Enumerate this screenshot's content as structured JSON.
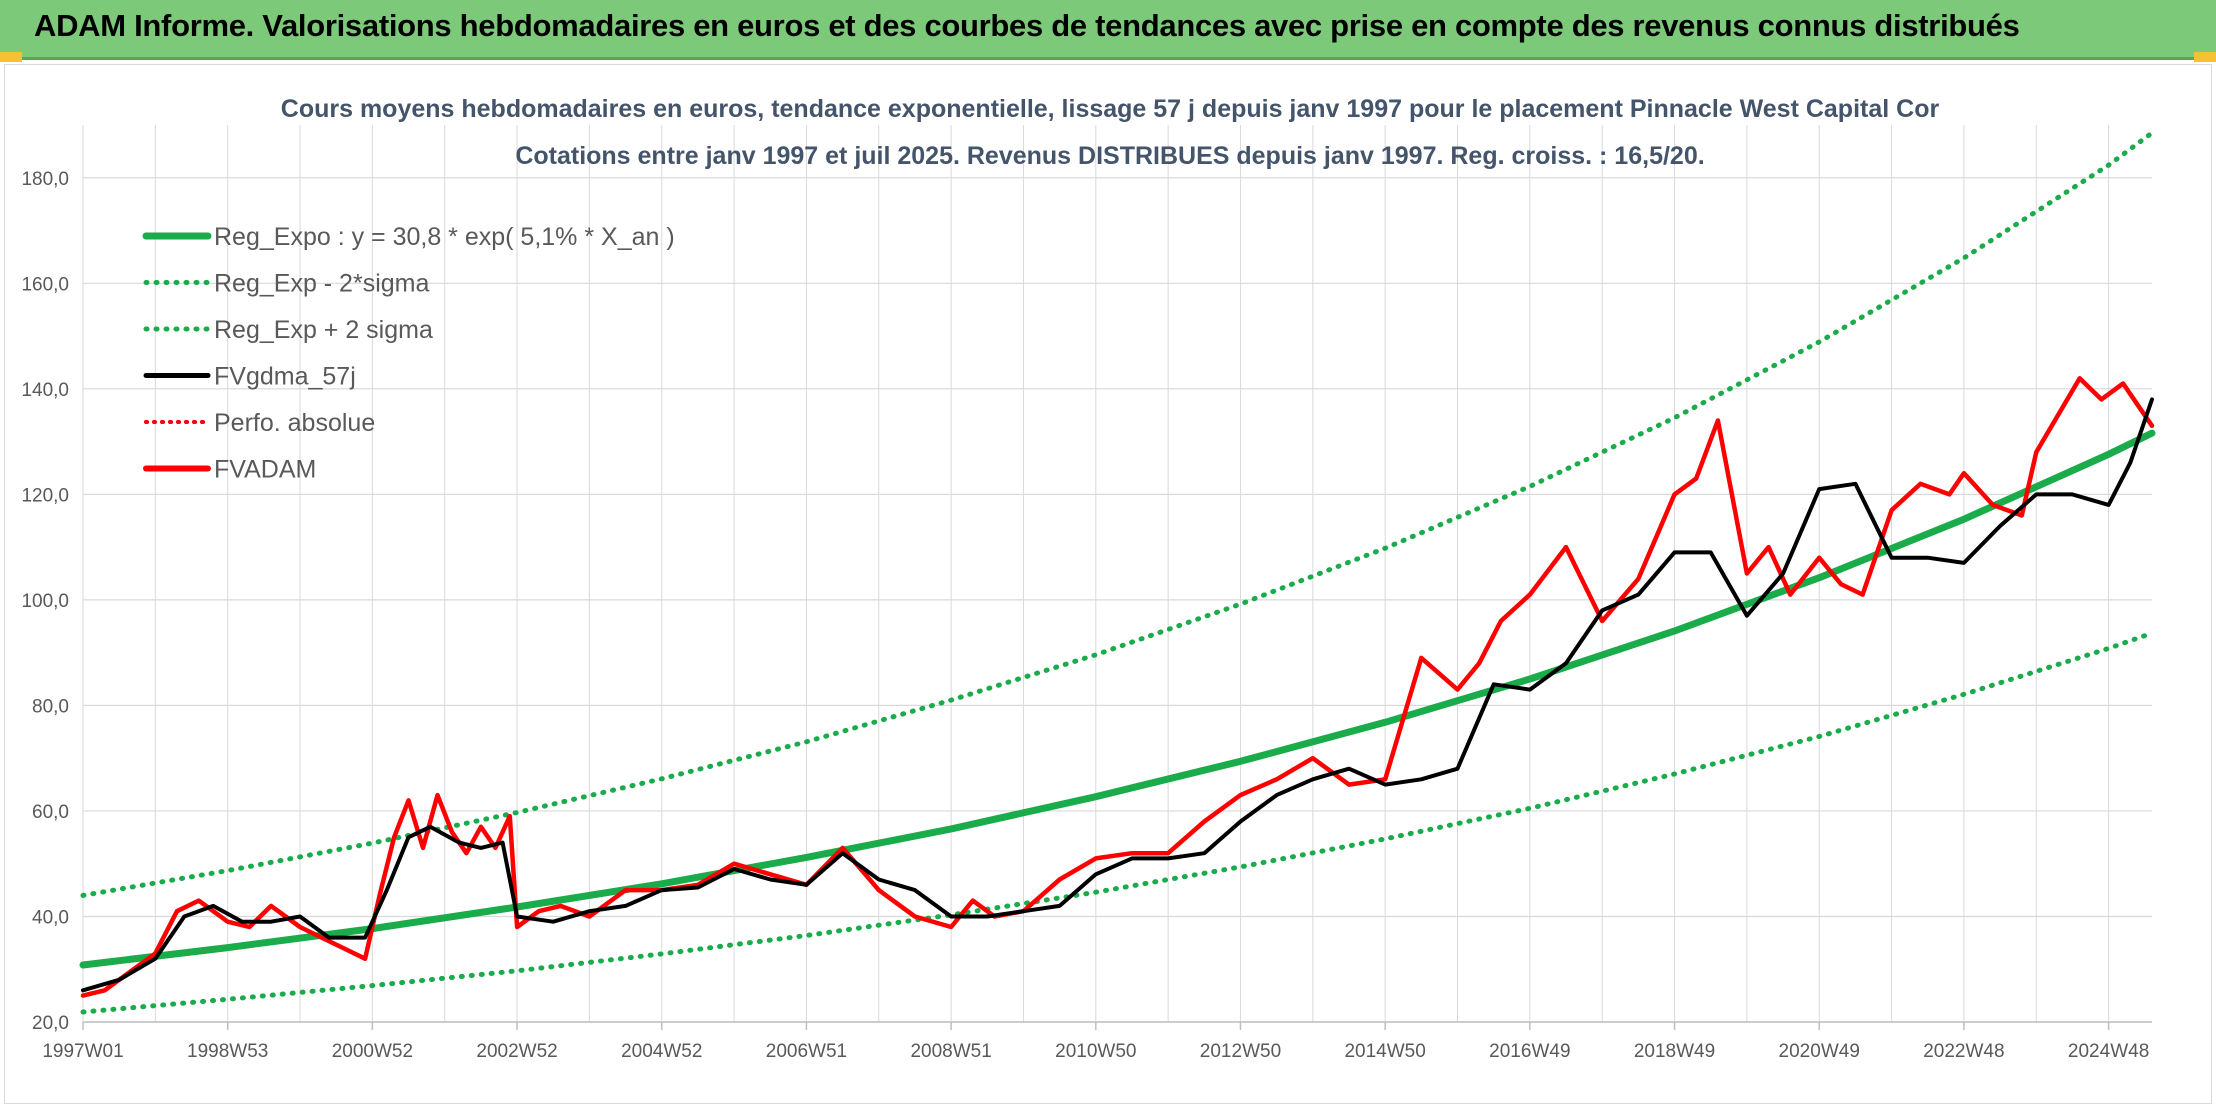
{
  "header": {
    "title": "ADAM Informe. Valorisations hebdomadaires en euros et des courbes de tendances avec prise en compte des revenus connus distribués"
  },
  "colors": {
    "banner": "#7dc97a",
    "reg_expo": "#1aab4b",
    "fvgdma": "#000000",
    "fvadam": "#ff0000",
    "perfo": "#ff0000",
    "grid": "#d9d9d9"
  },
  "chart_data": {
    "type": "line",
    "title": "Cours moyens hebdomadaires en euros, tendance exponentielle, lissage 57 j depuis janv 1997 pour le placement Pinnacle West Capital Cor",
    "subtitle": "Cotations entre janv 1997 et juil 2025. Revenus DISTRIBUES depuis janv 1997. Reg. croiss. : 16,5/20.",
    "xlabel": "",
    "ylabel": "",
    "ylim": [
      20,
      190
    ],
    "xlim": [
      1997.0,
      2025.6
    ],
    "grid": true,
    "legend_position": "top-left",
    "y_ticks": [
      "20,0",
      "40,0",
      "60,0",
      "80,0",
      "100,0",
      "120,0",
      "140,0",
      "160,0",
      "180,0"
    ],
    "x_ticks": [
      "1997W01",
      "1998W53",
      "2000W52",
      "2002W52",
      "2004W52",
      "2006W51",
      "2008W51",
      "2010W50",
      "2012W50",
      "2014W50",
      "2016W49",
      "2018W49",
      "2020W49",
      "2022W48",
      "2024W48"
    ],
    "x_tick_values": [
      1997.0,
      1999.0,
      2001.0,
      2003.0,
      2005.0,
      2007.0,
      2009.0,
      2011.0,
      2013.0,
      2015.0,
      2017.0,
      2019.0,
      2021.0,
      2023.0,
      2025.0
    ],
    "legend": [
      "Reg_Expo : y = 30,8 * exp( 5,1% *  X_an )",
      "Reg_Exp - 2*sigma",
      "Reg_Exp + 2 sigma",
      "FVgdma_57j",
      "Perfo. absolue",
      "FVADAM"
    ],
    "series": [
      {
        "name": "Reg_Expo : y = 30,8 * exp( 5,1% *  X_an )",
        "style": "solid-green-thick",
        "x": [
          1997.0,
          1999.0,
          2001.0,
          2003.0,
          2005.0,
          2007.0,
          2009.0,
          2011.0,
          2013.0,
          2015.0,
          2017.0,
          2019.0,
          2021.0,
          2023.0,
          2025.0,
          2025.6
        ],
        "values": [
          30.8,
          34.1,
          37.7,
          41.8,
          46.2,
          51.2,
          56.6,
          62.7,
          69.4,
          76.8,
          85.0,
          94.1,
          104.2,
          115.3,
          127.6,
          131.6
        ]
      },
      {
        "name": "Reg_Exp - 2*sigma",
        "style": "dotted-green",
        "x": [
          1997.0,
          1999.0,
          2001.0,
          2003.0,
          2005.0,
          2007.0,
          2009.0,
          2011.0,
          2013.0,
          2015.0,
          2017.0,
          2019.0,
          2021.0,
          2023.0,
          2025.0,
          2025.6
        ],
        "values": [
          21.9,
          24.3,
          26.9,
          29.7,
          32.9,
          36.4,
          40.3,
          44.6,
          49.4,
          54.7,
          60.5,
          67.0,
          74.1,
          82.1,
          90.8,
          93.7
        ]
      },
      {
        "name": "Reg_Exp + 2 sigma",
        "style": "dotted-green",
        "x": [
          1997.0,
          1999.0,
          2001.0,
          2003.0,
          2005.0,
          2007.0,
          2009.0,
          2011.0,
          2013.0,
          2015.0,
          2017.0,
          2019.0,
          2021.0,
          2023.0,
          2025.0,
          2025.6
        ],
        "values": [
          44.0,
          48.7,
          53.9,
          59.7,
          66.1,
          73.1,
          81.0,
          89.6,
          99.2,
          109.8,
          121.5,
          134.5,
          148.9,
          164.8,
          182.4,
          188.5
        ]
      },
      {
        "name": "FVgdma_57j",
        "style": "solid-black",
        "x": [
          1997.0,
          1997.5,
          1998.0,
          1998.4,
          1998.8,
          1999.2,
          1999.6,
          2000.0,
          2000.4,
          2000.9,
          2001.2,
          2001.5,
          2001.8,
          2002.2,
          2002.5,
          2002.8,
          2003.0,
          2003.5,
          2004.0,
          2004.5,
          2005.0,
          2005.5,
          2006.0,
          2006.5,
          2007.0,
          2007.5,
          2008.0,
          2008.5,
          2009.0,
          2009.5,
          2010.0,
          2010.5,
          2011.0,
          2011.5,
          2012.0,
          2012.5,
          2013.0,
          2013.5,
          2014.0,
          2014.5,
          2015.0,
          2015.5,
          2016.0,
          2016.5,
          2017.0,
          2017.5,
          2018.0,
          2018.5,
          2019.0,
          2019.5,
          2020.0,
          2020.5,
          2021.0,
          2021.5,
          2022.0,
          2022.5,
          2023.0,
          2023.5,
          2024.0,
          2024.5,
          2025.0,
          2025.3,
          2025.6
        ],
        "values": [
          26.0,
          28.0,
          32.0,
          40.0,
          42.0,
          39.0,
          39.0,
          40.0,
          36.0,
          36.0,
          45.0,
          55.0,
          57.0,
          54.0,
          53.0,
          54.0,
          40.0,
          39.0,
          41.0,
          42.0,
          45.0,
          45.5,
          49.0,
          47.0,
          46.0,
          52.0,
          47.0,
          45.0,
          40.0,
          40.0,
          41.0,
          42.0,
          48.0,
          51.0,
          51.0,
          52.0,
          58.0,
          63.0,
          66.0,
          68.0,
          65.0,
          66.0,
          68.0,
          84.0,
          83.0,
          88.0,
          98.0,
          101.0,
          109.0,
          109.0,
          97.0,
          105.0,
          121.0,
          122.0,
          108.0,
          108.0,
          107.0,
          114.0,
          120.0,
          120.0,
          118.0,
          126.0,
          138.0
        ]
      },
      {
        "name": "FVADAM",
        "style": "solid-red-thick",
        "x": [
          1997.0,
          1997.3,
          1997.6,
          1998.0,
          1998.3,
          1998.6,
          1999.0,
          1999.3,
          1999.6,
          2000.0,
          2000.3,
          2000.6,
          2000.9,
          2001.1,
          2001.3,
          2001.5,
          2001.7,
          2001.9,
          2002.1,
          2002.3,
          2002.5,
          2002.7,
          2002.9,
          2003.0,
          2003.3,
          2003.6,
          2004.0,
          2004.5,
          2005.0,
          2005.5,
          2006.0,
          2006.5,
          2007.0,
          2007.5,
          2008.0,
          2008.5,
          2009.0,
          2009.3,
          2009.6,
          2010.0,
          2010.5,
          2011.0,
          2011.5,
          2012.0,
          2012.5,
          2013.0,
          2013.5,
          2014.0,
          2014.5,
          2015.0,
          2015.5,
          2016.0,
          2016.3,
          2016.6,
          2017.0,
          2017.5,
          2018.0,
          2018.5,
          2019.0,
          2019.3,
          2019.6,
          2020.0,
          2020.3,
          2020.6,
          2021.0,
          2021.3,
          2021.6,
          2022.0,
          2022.4,
          2022.8,
          2023.0,
          2023.4,
          2023.8,
          2024.0,
          2024.3,
          2024.6,
          2024.9,
          2025.2,
          2025.4,
          2025.6
        ],
        "values": [
          25.0,
          26.0,
          29.0,
          33.0,
          41.0,
          43.0,
          39.0,
          38.0,
          42.0,
          38.0,
          36.0,
          34.0,
          32.0,
          44.0,
          55.0,
          62.0,
          53.0,
          63.0,
          56.0,
          52.0,
          57.0,
          53.0,
          59.0,
          38.0,
          41.0,
          42.0,
          40.0,
          45.0,
          45.0,
          46.0,
          50.0,
          48.0,
          46.0,
          53.0,
          45.0,
          40.0,
          38.0,
          43.0,
          40.0,
          41.0,
          47.0,
          51.0,
          52.0,
          52.0,
          58.0,
          63.0,
          66.0,
          70.0,
          65.0,
          66.0,
          89.0,
          83.0,
          88.0,
          96.0,
          101.0,
          110.0,
          96.0,
          104.0,
          120.0,
          123.0,
          134.0,
          105.0,
          110.0,
          101.0,
          108.0,
          103.0,
          101.0,
          117.0,
          122.0,
          120.0,
          124.0,
          118.0,
          116.0,
          128.0,
          135.0,
          142.0,
          138.0,
          141.0,
          137.0,
          133.0
        ]
      }
    ]
  }
}
